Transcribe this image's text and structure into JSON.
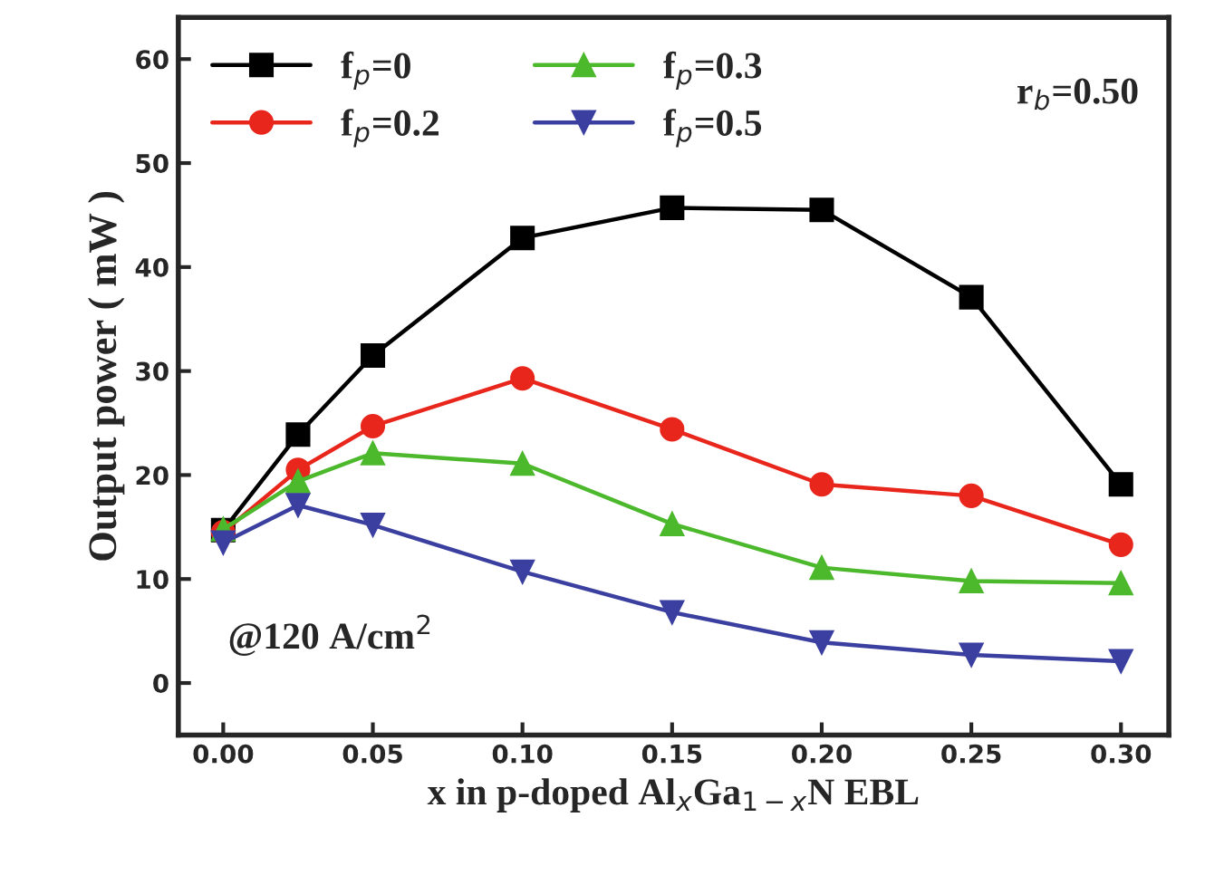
{
  "chart_data": {
    "type": "line",
    "xlabel": "x in p-doped Al$_{x}$Ga$_{1−x}$N EBL",
    "ylabel": "Output power ( mW )",
    "x": [
      0,
      0.025,
      0.05,
      0.1,
      0.15,
      0.2,
      0.25,
      0.3
    ],
    "series": [
      {
        "name": "f$_{p}$=0",
        "color": "#000000",
        "marker": "square",
        "values": [
          14.7,
          23.9,
          31.5,
          42.8,
          45.7,
          45.5,
          37.1,
          19.1
        ]
      },
      {
        "name": "f$_{p}$=0.2",
        "color": "#e8261c",
        "marker": "circle",
        "values": [
          14.5,
          20.5,
          24.7,
          29.3,
          24.4,
          19.1,
          18.0,
          13.3
        ]
      },
      {
        "name": "f$_{p}$=0.3",
        "color": "#4cb82c",
        "marker": "triangle",
        "values": [
          14.8,
          19.4,
          22.1,
          21.1,
          15.3,
          11.1,
          9.8,
          9.6
        ]
      },
      {
        "name": "f$_{p}$=0.5",
        "color": "#3a3fa0",
        "marker": "triangle_down",
        "values": [
          13.5,
          17.1,
          15.2,
          10.7,
          6.8,
          3.9,
          2.7,
          2.1
        ]
      }
    ],
    "xlim": [
      -0.015,
      0.316
    ],
    "xticks": [
      {
        "value": 0,
        "label": "0.00"
      },
      0.05,
      {
        "value": 0.1,
        "label": "0.10"
      },
      0.15,
      {
        "value": 0.2,
        "label": "0.20"
      },
      0.25,
      {
        "value": 0.3,
        "label": "0.30"
      }
    ],
    "ylim": [
      -5,
      64
    ],
    "yticks": [
      0,
      10,
      20,
      30,
      40,
      50,
      60
    ],
    "annotations": [
      "r$_{b}$=0.50",
      "@120 A/cm$^{2}$"
    ],
    "legend": "top left",
    "grid": false,
    "line_style": "solid"
  }
}
